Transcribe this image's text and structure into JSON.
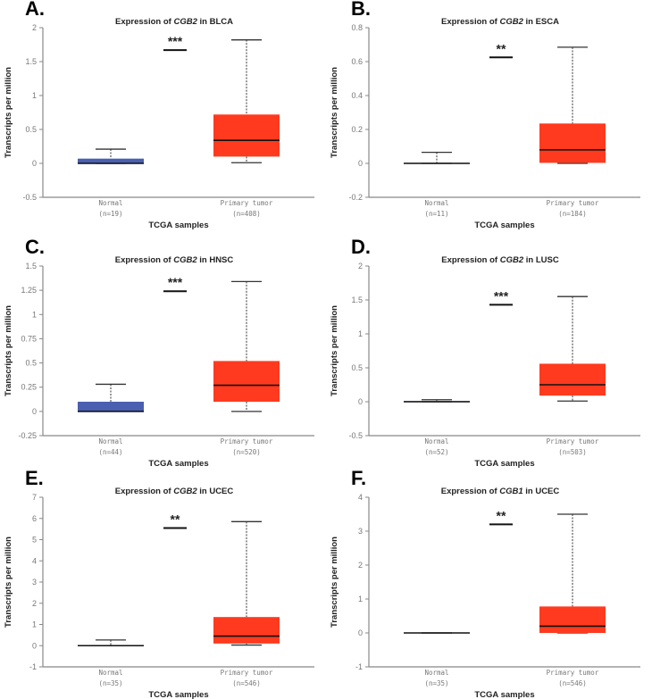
{
  "colors": {
    "normal": "#4a5fb0",
    "tumor": "#ff3a1f",
    "axis": "#888888",
    "median": "#111111"
  },
  "chart_data": [
    {
      "type": "box",
      "panel": "A.",
      "title_prefix": "Expression of ",
      "gene": "CGB2",
      "title_suffix": " in BLCA",
      "ylabel": "Transcripts per million",
      "xlabel": "TCGA samples",
      "ylim": [
        -0.5,
        2
      ],
      "yticks": [
        "-0.5",
        "0",
        "0.5",
        "1",
        "1.5",
        "2"
      ],
      "categories": [
        {
          "name": "Normal",
          "n": "(n=19)",
          "min": 0,
          "q1": 0,
          "median": 0,
          "q3": 0.07,
          "max": 0.21
        },
        {
          "name": "Primary tumor",
          "n": "(n=408)",
          "min": 0.01,
          "q1": 0.1,
          "median": 0.34,
          "q3": 0.72,
          "max": 1.82
        }
      ],
      "significance": {
        "label": "***",
        "y": 1.67
      }
    },
    {
      "type": "box",
      "panel": "B.",
      "title_prefix": "Expression of ",
      "gene": "CGB2",
      "title_suffix": " in ESCA",
      "ylabel": "Transcripts per million",
      "xlabel": "TCGA samples",
      "ylim": [
        -0.2,
        0.8
      ],
      "yticks": [
        "-0.2",
        "0",
        "0.2",
        "0.4",
        "0.6",
        "0.8"
      ],
      "categories": [
        {
          "name": "Normal",
          "n": "(n=11)",
          "min": 0,
          "q1": 0,
          "median": 0,
          "q3": 0.003,
          "max": 0.065
        },
        {
          "name": "Primary tumor",
          "n": "(n=184)",
          "min": 0,
          "q1": 0.003,
          "median": 0.08,
          "q3": 0.235,
          "max": 0.685
        }
      ],
      "significance": {
        "label": "**",
        "y": 0.625
      }
    },
    {
      "type": "box",
      "panel": "C.",
      "title_prefix": "Expression of ",
      "gene": "CGB2",
      "title_suffix": " in HNSC",
      "ylabel": "Transcripts per million",
      "xlabel": "TCGA samples",
      "ylim": [
        -0.25,
        1.5
      ],
      "yticks": [
        "-0.25",
        "0",
        "0.25",
        "0.5",
        "0.75",
        "1",
        "1.25",
        "1.5"
      ],
      "categories": [
        {
          "name": "Normal",
          "n": "(n=44)",
          "min": 0,
          "q1": 0,
          "median": 0,
          "q3": 0.1,
          "max": 0.28
        },
        {
          "name": "Primary tumor",
          "n": "(n=520)",
          "min": 0,
          "q1": 0.1,
          "median": 0.27,
          "q3": 0.52,
          "max": 1.34
        }
      ],
      "significance": {
        "label": "***",
        "y": 1.24
      }
    },
    {
      "type": "box",
      "panel": "D.",
      "title_prefix": "Expression of ",
      "gene": "CGB2",
      "title_suffix": " in LUSC",
      "ylabel": "Transcripts per million",
      "xlabel": "TCGA samples",
      "ylim": [
        -0.5,
        2
      ],
      "yticks": [
        "-0.5",
        "0",
        "0.5",
        "1",
        "1.5",
        "2"
      ],
      "categories": [
        {
          "name": "Normal",
          "n": "(n=52)",
          "min": 0,
          "q1": 0,
          "median": 0,
          "q3": 0.01,
          "max": 0.03
        },
        {
          "name": "Primary tumor",
          "n": "(n=503)",
          "min": 0.01,
          "q1": 0.09,
          "median": 0.25,
          "q3": 0.56,
          "max": 1.55
        }
      ],
      "significance": {
        "label": "***",
        "y": 1.43
      }
    },
    {
      "type": "box",
      "panel": "E.",
      "title_prefix": "Expression of ",
      "gene": "CGB2",
      "title_suffix": " in UCEC",
      "ylabel": "Transcripts per million",
      "xlabel": "TCGA samples",
      "ylim": [
        -1,
        7
      ],
      "yticks": [
        "-1",
        "0",
        "1",
        "2",
        "3",
        "4",
        "5",
        "6",
        "7"
      ],
      "categories": [
        {
          "name": "Normal",
          "n": "(n=35)",
          "min": 0,
          "q1": 0,
          "median": 0,
          "q3": 0.02,
          "max": 0.27
        },
        {
          "name": "Primary tumor",
          "n": "(n=546)",
          "min": 0.03,
          "q1": 0.1,
          "median": 0.45,
          "q3": 1.35,
          "max": 5.85
        }
      ],
      "significance": {
        "label": "**",
        "y": 5.55
      }
    },
    {
      "type": "box",
      "panel": "F.",
      "title_prefix": "Expression of ",
      "gene": "CGB1",
      "title_suffix": " in UCEC",
      "ylabel": "Transcripts per million",
      "xlabel": "TCGA samples",
      "ylim": [
        -1,
        4
      ],
      "yticks": [
        "-1",
        "0",
        "1",
        "2",
        "3",
        "4"
      ],
      "categories": [
        {
          "name": "Normal",
          "n": "(n=35)",
          "min": 0,
          "q1": 0,
          "median": 0,
          "q3": 0,
          "max": 0
        },
        {
          "name": "Primary tumor",
          "n": "(n=546)",
          "min": 0,
          "q1": 0,
          "median": 0.2,
          "q3": 0.78,
          "max": 3.5
        }
      ],
      "significance": {
        "label": "**",
        "y": 3.2
      }
    }
  ]
}
